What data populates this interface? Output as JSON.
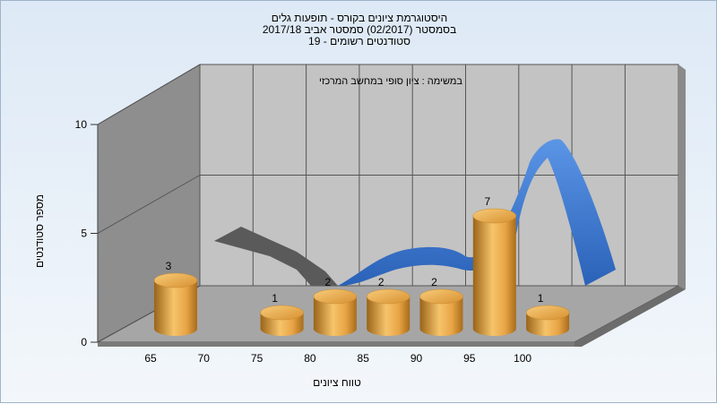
{
  "chart_data": {
    "type": "bar",
    "title_lines": [
      "היסטוגרמת ציונים בקורס - תופעות גלים",
      "בסמסטר  (02/2017)  סמסטר אביב 2017/18",
      "סטודנטים רשומים - 19"
    ],
    "subtitle": "במשימה : ציון סופי במחשב המרכזי",
    "xlabel": "טווח ציונים",
    "ylabel": "מספר סטודנטים",
    "categories": [
      "65",
      "70",
      "75",
      "80",
      "85",
      "90",
      "95",
      "100"
    ],
    "x_tick_labels": [
      "65",
      "70",
      "75",
      "80",
      "85",
      "90",
      "95",
      "100"
    ],
    "y_ticks": [
      "0",
      "5",
      "10"
    ],
    "ylim": [
      0,
      10
    ],
    "grid": true,
    "series": [
      {
        "values": [
          3,
          0,
          1,
          2,
          2,
          2,
          7,
          1
        ],
        "data_labels": [
          "3",
          "",
          "1",
          "2",
          "2",
          "2",
          "7",
          "1"
        ],
        "color": "#e8a445"
      }
    ],
    "curve": {
      "color": "#3a78d0",
      "shadow_color": "#5a5a5a"
    },
    "colors": {
      "back_wall": "#c3c3c3",
      "left_wall": "#8e8e8e",
      "floor": "#a6a6a6",
      "bar": "#e8a445"
    }
  }
}
